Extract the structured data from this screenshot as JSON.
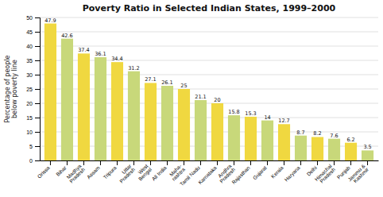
{
  "chart_data": {
    "type": "bar",
    "title": "Poverty Ratio in Selected Indian States, 1999–2000",
    "ylabel": "Percentage of people\nbelow poverty line",
    "categories": [
      "Orissa",
      "Bihar",
      "Madhya\nPradesh",
      "Assam",
      "Tripura",
      "Uttar\nPradesh",
      "West\nBengal",
      "All India",
      "Maha-\nrashtra",
      "Tamil Nadu",
      "Karnataka",
      "Andhra\nPradesh",
      "Rajasthan",
      "Gujarat",
      "Kerala",
      "Haryana",
      "Delhi",
      "Himachal\nPradesh",
      "Punjab",
      "Jammu &\nKashmir"
    ],
    "values": [
      47.9,
      42.6,
      37.4,
      36.1,
      34.4,
      31.2,
      27.1,
      26.1,
      25.0,
      21.1,
      20.0,
      15.8,
      15.3,
      14.0,
      12.7,
      8.7,
      8.2,
      7.6,
      6.2,
      3.5
    ],
    "colors": [
      "#f0d840",
      "#c8d87a",
      "#f0d840",
      "#c8d87a",
      "#f0d840",
      "#c8d87a",
      "#f0d840",
      "#c8d87a",
      "#f0d840",
      "#c8d87a",
      "#f0d840",
      "#c8d87a",
      "#f0d840",
      "#c8d87a",
      "#f0d840",
      "#c8d87a",
      "#f0d840",
      "#c8d87a",
      "#f0d840",
      "#c8d87a"
    ],
    "ylim": [
      0,
      50
    ],
    "yticks": [
      0,
      5,
      10,
      15,
      20,
      25,
      30,
      35,
      40,
      45,
      50
    ],
    "grid": true,
    "data_labels": true
  }
}
